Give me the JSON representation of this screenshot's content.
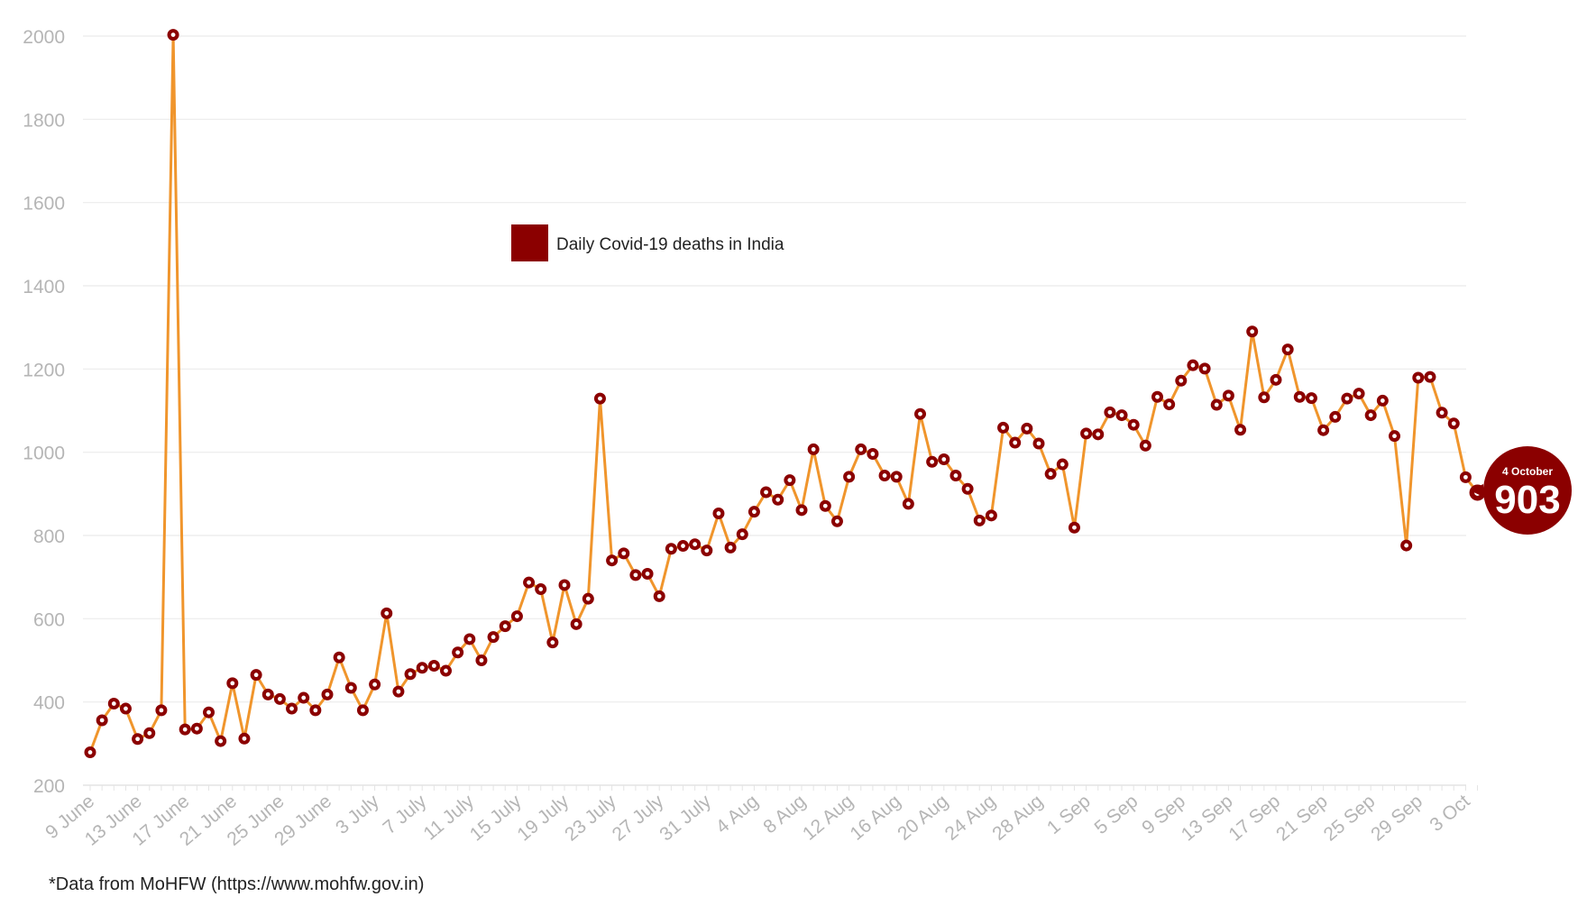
{
  "chart_data": {
    "type": "line",
    "title": "",
    "xlabel": "",
    "ylabel": "",
    "ylim": [
      200,
      2000
    ],
    "yticks": [
      200,
      400,
      600,
      800,
      1000,
      1200,
      1400,
      1600,
      1800,
      2000
    ],
    "xtick_labels": [
      "9 June",
      "13 June",
      "17 June",
      "21 June",
      "25 June",
      "29 June",
      "3 July",
      "7 July",
      "11 July",
      "15 July",
      "19 July",
      "23 July",
      "27 July",
      "31 July",
      "4 Aug",
      "8 Aug",
      "12 Aug",
      "16 Aug",
      "20 Aug",
      "24 Aug",
      "28 Aug",
      "1 Sep",
      "5 Sep",
      "9 Sep",
      "13 Sep",
      "17 Sep",
      "21 Sep",
      "25 Sep",
      "29 Sep",
      "3 Oct"
    ],
    "grid": true,
    "legend_position": "top-center",
    "series": [
      {
        "name": "Daily Covid-19 deaths in India",
        "line_color": "#f0952c",
        "marker_color": "#8b0000",
        "x_start": "9 June",
        "x_end": "4 October",
        "values": [
          279,
          356,
          396,
          384,
          311,
          325,
          380,
          2003,
          334,
          336,
          375,
          306,
          445,
          312,
          465,
          418,
          407,
          384,
          410,
          380,
          418,
          507,
          434,
          380,
          442,
          613,
          425,
          467,
          482,
          487,
          475,
          519,
          551,
          500,
          556,
          582,
          606,
          687,
          671,
          543,
          681,
          587,
          648,
          1129,
          740,
          757,
          705,
          708,
          654,
          768,
          775,
          779,
          764,
          853,
          771,
          803,
          857,
          904,
          886,
          933,
          861,
          1007,
          871,
          834,
          941,
          1007,
          996,
          944,
          941,
          876,
          1092,
          977,
          983,
          944,
          912,
          836,
          848,
          1059,
          1023,
          1057,
          1021,
          948,
          971,
          819,
          1045,
          1043,
          1096,
          1089,
          1066,
          1016,
          1133,
          1115,
          1172,
          1209,
          1201,
          1114,
          1136,
          1054,
          1290,
          1132,
          1174,
          1247,
          1133,
          1130,
          1053,
          1085,
          1129,
          1141,
          1089,
          1124,
          1039,
          776,
          1179,
          1181,
          1095,
          1069,
          940,
          903
        ]
      }
    ],
    "highlight": {
      "label": "4 October",
      "value": "903",
      "color": "#8b0000"
    },
    "source_note": "*Data from MoHFW (https://www.mohfw.gov.in)"
  }
}
